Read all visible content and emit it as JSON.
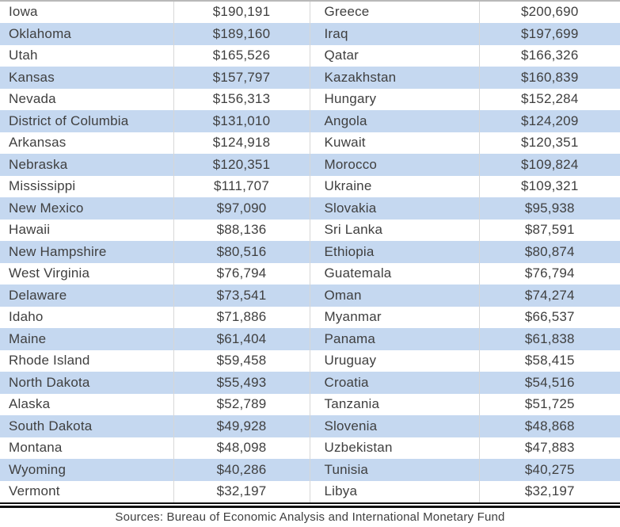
{
  "chart_data": {
    "type": "table",
    "description": "Cropped comparison table pairing U.S. state GDP figures (left pair of columns) with countries of similar GDP (right pair of columns); alternating white/light-blue row shading; no header row visible",
    "row_shade_color": "#c5d8f0",
    "rows": [
      {
        "state": "Iowa",
        "state_gdp": "$190,191",
        "country": "Greece",
        "country_gdp": "$200,690"
      },
      {
        "state": "Oklahoma",
        "state_gdp": "$189,160",
        "country": "Iraq",
        "country_gdp": "$197,699"
      },
      {
        "state": "Utah",
        "state_gdp": "$165,526",
        "country": "Qatar",
        "country_gdp": "$166,326"
      },
      {
        "state": "Kansas",
        "state_gdp": "$157,797",
        "country": "Kazakhstan",
        "country_gdp": "$160,839"
      },
      {
        "state": "Nevada",
        "state_gdp": "$156,313",
        "country": "Hungary",
        "country_gdp": "$152,284"
      },
      {
        "state": "District of Columbia",
        "state_gdp": "$131,010",
        "country": "Angola",
        "country_gdp": "$124,209"
      },
      {
        "state": "Arkansas",
        "state_gdp": "$124,918",
        "country": "Kuwait",
        "country_gdp": "$120,351"
      },
      {
        "state": "Nebraska",
        "state_gdp": "$120,351",
        "country": "Morocco",
        "country_gdp": "$109,824"
      },
      {
        "state": "Mississippi",
        "state_gdp": "$111,707",
        "country": "Ukraine",
        "country_gdp": "$109,321"
      },
      {
        "state": "New Mexico",
        "state_gdp": "$97,090",
        "country": "Slovakia",
        "country_gdp": "$95,938"
      },
      {
        "state": "Hawaii",
        "state_gdp": "$88,136",
        "country": "Sri Lanka",
        "country_gdp": "$87,591"
      },
      {
        "state": "New Hampshire",
        "state_gdp": "$80,516",
        "country": "Ethiopia",
        "country_gdp": "$80,874"
      },
      {
        "state": "West Virginia",
        "state_gdp": "$76,794",
        "country": "Guatemala",
        "country_gdp": "$76,794"
      },
      {
        "state": "Delaware",
        "state_gdp": "$73,541",
        "country": "Oman",
        "country_gdp": "$74,274"
      },
      {
        "state": "Idaho",
        "state_gdp": "$71,886",
        "country": "Myanmar",
        "country_gdp": "$66,537"
      },
      {
        "state": "Maine",
        "state_gdp": "$61,404",
        "country": "Panama",
        "country_gdp": "$61,838"
      },
      {
        "state": "Rhode Island",
        "state_gdp": "$59,458",
        "country": "Uruguay",
        "country_gdp": "$58,415"
      },
      {
        "state": "North Dakota",
        "state_gdp": "$55,493",
        "country": "Croatia",
        "country_gdp": "$54,516"
      },
      {
        "state": "Alaska",
        "state_gdp": "$52,789",
        "country": "Tanzania",
        "country_gdp": "$51,725"
      },
      {
        "state": "South Dakota",
        "state_gdp": "$49,928",
        "country": "Slovenia",
        "country_gdp": "$48,868"
      },
      {
        "state": "Montana",
        "state_gdp": "$48,098",
        "country": "Uzbekistan",
        "country_gdp": "$47,883"
      },
      {
        "state": "Wyoming",
        "state_gdp": "$40,286",
        "country": "Tunisia",
        "country_gdp": "$40,275"
      },
      {
        "state": "Vermont",
        "state_gdp": "$32,197",
        "country": "Libya",
        "country_gdp": "$32,197"
      }
    ]
  },
  "footer": {
    "text": "Sources: Bureau of Economic Analysis and International Monetary Fund"
  }
}
